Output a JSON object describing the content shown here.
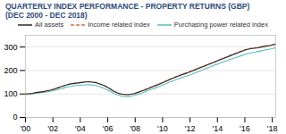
{
  "chart_data": {
    "type": "line",
    "title": "QUARTERLY INDEX PERFORMANCE - PROPERTY RETURNS (GBP)",
    "subtitle": "(DEC 2000 - DEC 2018)",
    "title_color": "#2e4a7a",
    "x": [
      2000,
      2000.257,
      2000.5141,
      2000.7711,
      2001.0282,
      2001.2852,
      2001.5423,
      2001.7993,
      2002.0563,
      2002.3134,
      2002.5704,
      2002.8275,
      2003.0845,
      2003.3415,
      2003.5986,
      2003.8556,
      2004.1127,
      2004.3697,
      2004.6268,
      2004.8838,
      2005.1408,
      2005.3979,
      2005.6549,
      2005.912,
      2006.169,
      2006.4261,
      2006.6831,
      2006.9401,
      2007.1972,
      2007.4542,
      2007.7113,
      2007.9683,
      2008.2254,
      2008.4824,
      2008.7394,
      2008.9965,
      2009.2535,
      2009.5106,
      2009.7676,
      2010.0246,
      2010.2817,
      2010.5387,
      2010.7958,
      2011.0528,
      2011.3099,
      2011.5669,
      2011.8239,
      2012.081,
      2012.338,
      2012.5951,
      2012.8521,
      2013.1092,
      2013.3662,
      2013.6232,
      2013.8803,
      2014.1373,
      2014.3944,
      2014.6514,
      2014.9085,
      2015.1655,
      2015.4225,
      2015.6796,
      2015.9366,
      2016.1937,
      2016.4507,
      2016.7077,
      2016.9648,
      2017.2218,
      2017.4789,
      2017.7359,
      2017.993,
      2018.25
    ],
    "series": [
      {
        "name": "All assets",
        "color": "#2b2b2b",
        "line_style": "solid",
        "values": [
          100,
          101,
          103,
          106,
          108,
          110,
          113,
          116,
          120,
          125,
          130,
          135,
          140,
          143,
          145,
          147,
          149,
          151,
          152,
          150,
          148,
          143,
          138,
          130,
          122,
          112,
          105,
          100,
          98,
          97,
          99,
          102,
          107,
          112,
          118,
          124,
          130,
          136,
          142,
          148,
          155,
          162,
          168,
          174,
          180,
          185,
          190,
          196,
          202,
          208,
          214,
          220,
          226,
          232,
          238,
          244,
          250,
          256,
          262,
          268,
          274,
          280,
          285,
          290,
          293,
          295,
          297,
          300,
          303,
          305,
          308,
          312
        ]
      },
      {
        "name": "Income related index",
        "color": "#d4724a",
        "line_style": "dashed",
        "values": [
          100,
          101,
          103,
          106,
          108,
          110,
          113,
          116,
          121,
          126,
          131,
          136,
          141,
          144,
          146,
          148,
          150,
          152,
          153,
          151,
          149,
          144,
          139,
          131,
          123,
          113,
          106,
          101,
          99,
          98,
          100,
          103,
          108,
          114,
          120,
          126,
          132,
          138,
          144,
          150,
          157,
          164,
          170,
          176,
          182,
          187,
          192,
          198,
          204,
          210,
          216,
          222,
          228,
          234,
          240,
          246,
          252,
          258,
          264,
          270,
          276,
          282,
          287,
          292,
          295,
          297,
          299,
          302,
          305,
          307,
          310,
          315
        ]
      },
      {
        "name": "Purchasing power related index",
        "color": "#5bbcbc",
        "line_style": "solid",
        "values": [
          100,
          100,
          101,
          103,
          105,
          107,
          109,
          111,
          114,
          118,
          122,
          126,
          130,
          133,
          135,
          137,
          138,
          139,
          140,
          138,
          136,
          131,
          126,
          119,
          112,
          103,
          97,
          92,
          90,
          89,
          91,
          94,
          99,
          104,
          110,
          116,
          121,
          127,
          133,
          139,
          145,
          151,
          157,
          163,
          168,
          173,
          178,
          183,
          189,
          195,
          201,
          207,
          213,
          219,
          225,
          230,
          236,
          241,
          247,
          252,
          257,
          262,
          267,
          272,
          275,
          278,
          281,
          284,
          287,
          290,
          293,
          297
        ]
      }
    ],
    "xlim": [
      2000,
      2018.25
    ],
    "xticks": [
      {
        "value": 2000,
        "label": "'00"
      },
      {
        "value": 2002,
        "label": "'02"
      },
      {
        "value": 2004,
        "label": "'04"
      },
      {
        "value": 2006,
        "label": "'06"
      },
      {
        "value": 2008,
        "label": "'08"
      },
      {
        "value": 2010,
        "label": "'10"
      },
      {
        "value": 2012,
        "label": "'12"
      },
      {
        "value": 2014,
        "label": "'14"
      },
      {
        "value": 2016,
        "label": "'16"
      },
      {
        "value": 2018,
        "label": "'18"
      }
    ],
    "ylim": [
      0,
      350
    ],
    "yticks": [
      0,
      100,
      200,
      300
    ],
    "grid": true,
    "legend": "top"
  }
}
